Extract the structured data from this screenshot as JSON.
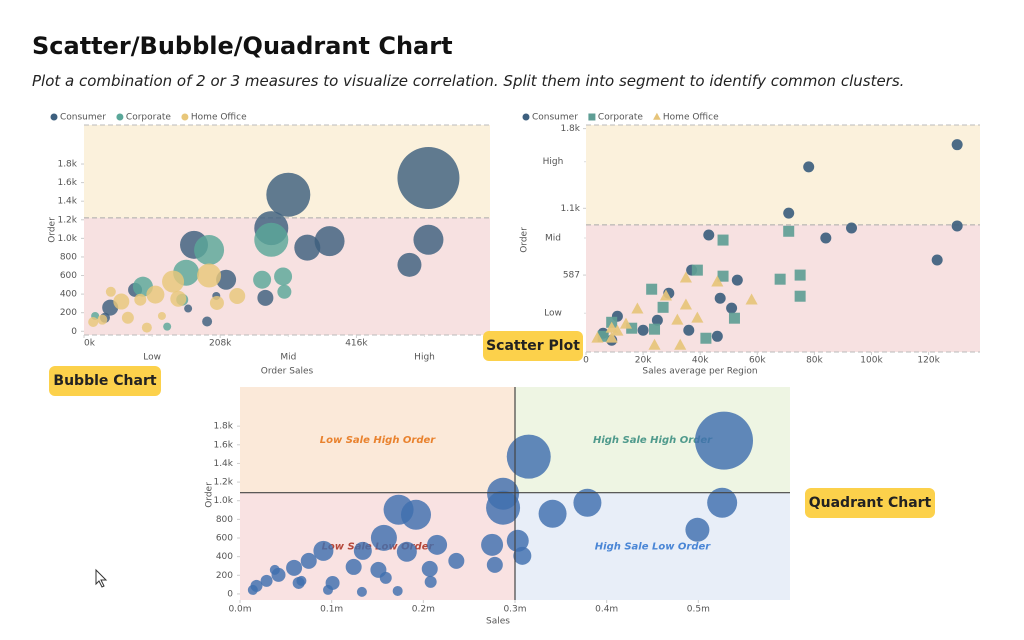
{
  "title": "Scatter/Bubble/Quadrant Chart",
  "subtitle": "Plot a combination of 2 or 3 measures to visualize correlation. Split them into segment to identify common clusters.",
  "chart_data": [
    {
      "type": "bubble",
      "badge": "Bubble Chart",
      "x_label": "Order Sales",
      "y_label": "Order",
      "xlim": [
        0,
        620000
      ],
      "ylim": [
        -40,
        2220
      ],
      "xticks": [
        {
          "value": 0,
          "label": "0k"
        },
        {
          "value": 208000,
          "label": "208k"
        },
        {
          "value": 416000,
          "label": "416k"
        }
      ],
      "xcategory_ticks": [
        {
          "value": 104000,
          "label": "Low"
        },
        {
          "value": 312000,
          "label": "Mid"
        },
        {
          "value": 520000,
          "label": "High"
        }
      ],
      "yticks": [
        0,
        200,
        400,
        600,
        800,
        {
          "value": 1000,
          "label": "1.0k"
        },
        {
          "value": 1200,
          "label": "1.2k"
        },
        {
          "value": 1400,
          "label": "1.4k"
        },
        {
          "value": 1600,
          "label": "1.6k"
        },
        {
          "value": 1800,
          "label": "1.8k"
        }
      ],
      "bands": {
        "threshold": 1220,
        "upper_color": "#fbf1dc",
        "lower_color": "#f7e1e1"
      },
      "series": [
        {
          "name": "Consumer",
          "color": "#3d5f7e",
          "marker": "circle",
          "x": [
            312000,
            526000,
            286000,
            375000,
            341000,
            526000,
            497000,
            168000,
            217000,
            277000,
            78000,
            40000,
            32000,
            188000,
            159000,
            202000
          ],
          "values": [
            1470,
            1650,
            1110,
            970,
            900,
            985,
            715,
            930,
            555,
            360,
            445,
            255,
            145,
            105,
            245,
            380
          ],
          "sizes": [
            22,
            31,
            17,
            15,
            13,
            15,
            12,
            14,
            10,
            8,
            7,
            8,
            5,
            5,
            4,
            4
          ]
        },
        {
          "name": "Corporate",
          "color": "#5aa799",
          "marker": "circle",
          "x": [
            286000,
            191000,
            156000,
            90000,
            272000,
            304000,
            306000,
            150000,
            127000,
            17000
          ],
          "values": [
            985,
            875,
            630,
            480,
            555,
            590,
            425,
            340,
            50,
            165
          ],
          "sizes": [
            17,
            15,
            13,
            10,
            9,
            9,
            7,
            6,
            4,
            4
          ]
        },
        {
          "name": "Home Office",
          "color": "#e8c77a",
          "marker": "circle",
          "x": [
            191000,
            136000,
            109000,
            144000,
            57000,
            234000,
            203000,
            86000,
            67000,
            96000,
            14000,
            28000,
            119000,
            41000
          ],
          "values": [
            600,
            535,
            395,
            350,
            320,
            380,
            305,
            340,
            145,
            40,
            100,
            125,
            165,
            425
          ],
          "sizes": [
            12,
            11,
            9,
            8,
            8,
            8,
            7,
            6,
            6,
            5,
            5,
            5,
            4,
            5
          ]
        }
      ]
    },
    {
      "type": "scatter",
      "badge": "Scatter Plot",
      "x_label": "Sales average per Region",
      "y_label": "Order",
      "xlim": [
        0,
        138000
      ],
      "ylim": [
        -50,
        1830
      ],
      "xticks": [
        0,
        {
          "value": 20000,
          "label": "20k"
        },
        {
          "value": 40000,
          "label": "40k"
        },
        {
          "value": 60000,
          "label": "60k"
        },
        {
          "value": 80000,
          "label": "80k"
        },
        {
          "value": 100000,
          "label": "100k"
        },
        {
          "value": 120000,
          "label": "120k"
        }
      ],
      "yticks": [
        587,
        {
          "value": 1140,
          "label": "1.1k"
        },
        {
          "value": 1800,
          "label": "1.8k"
        }
      ],
      "ycategory_ticks": [
        {
          "value": 271,
          "label": "Low"
        },
        {
          "value": 894,
          "label": "Mid"
        },
        {
          "value": 1526,
          "label": "High"
        }
      ],
      "bands": {
        "threshold": 1003,
        "upper_color": "#fbf1dc",
        "lower_color": "#f7e1e1"
      },
      "series": [
        {
          "name": "Consumer",
          "color": "#3d5f7e",
          "marker": "circle",
          "x": [
            130000,
            78000,
            71000,
            84000,
            93000,
            130000,
            123000,
            43000,
            37000,
            53000,
            29000,
            47000,
            11000,
            20000,
            6000,
            9000,
            25000,
            46000,
            51000,
            36000
          ],
          "values": [
            1667,
            1483,
            1100,
            894,
            977,
            994,
            712,
            919,
            628,
            545,
            437,
            395,
            246,
            130,
            105,
            47,
            213,
            80,
            313,
            130
          ]
        },
        {
          "name": "Corporate",
          "color": "#5f9e95",
          "marker": "square",
          "x": [
            71000,
            48000,
            39000,
            68000,
            75000,
            75000,
            48000,
            23000,
            9000,
            16000,
            6000,
            24000,
            42000,
            52000,
            27000
          ],
          "values": [
            950,
            877,
            628,
            553,
            587,
            412,
            578,
            470,
            196,
            147,
            80,
            139,
            64,
            230,
            320
          ]
        },
        {
          "name": "Home Office",
          "color": "#e6c47a",
          "marker": "triangle",
          "x": [
            58000,
            46000,
            35000,
            35000,
            32000,
            39000,
            18000,
            28000,
            14000,
            11000,
            4000,
            9000,
            24000,
            33000,
            9000
          ],
          "values": [
            380,
            529,
            562,
            338,
            213,
            230,
            305,
            413,
            180,
            122,
            64,
            64,
            5,
            5,
            147
          ]
        }
      ]
    },
    {
      "type": "bubble",
      "badge": "Quadrant Chart",
      "x_label": "Sales",
      "y_label": "Order",
      "xlim": [
        0,
        600000
      ],
      "ylim": [
        -65,
        2220
      ],
      "xticks": [
        {
          "value": 0,
          "label": "0.0m"
        },
        {
          "value": 100000,
          "label": "0.1m"
        },
        {
          "value": 200000,
          "label": "0.2m"
        },
        {
          "value": 300000,
          "label": "0.3m"
        },
        {
          "value": 400000,
          "label": "0.4m"
        },
        {
          "value": 500000,
          "label": "0.5m"
        }
      ],
      "yticks": [
        0,
        200,
        400,
        600,
        800,
        {
          "value": 1000,
          "label": "1.0k"
        },
        {
          "value": 1200,
          "label": "1.2k"
        },
        {
          "value": 1400,
          "label": "1.4k"
        },
        {
          "value": 1600,
          "label": "1.6k"
        },
        {
          "value": 1800,
          "label": "1.8k"
        }
      ],
      "quadrants": {
        "x": 300000,
        "y": 1086,
        "top_left": {
          "label": "Low Sale High Order",
          "color": "#e9822e",
          "fill": "#fbe9d9"
        },
        "top_right": {
          "label": "High Sale High Order",
          "color": "#4f9a8c",
          "fill": "#eef5e3"
        },
        "bottom_left": {
          "label": "Low Sale Low Order",
          "color": "#b5473a",
          "fill": "#f9e2e2"
        },
        "bottom_right": {
          "label": "High Sale Low Order",
          "color": "#4a86d6",
          "fill": "#e8eef8"
        }
      },
      "series": [
        {
          "name": null,
          "color": "#3f6fae",
          "marker": "circle",
          "x": [
            528000,
            315000,
            287000,
            287000,
            526000,
            379000,
            341000,
            499000,
            173000,
            192000,
            157000,
            303000,
            275000,
            215000,
            91000,
            182000,
            308000,
            134000,
            75000,
            124000,
            151000,
            207000,
            236000,
            59000,
            42000,
            278000,
            101000,
            64000,
            159000,
            208000,
            29000,
            18000,
            14000,
            67000,
            96000,
            133000,
            172000,
            38000
          ],
          "values": [
            1645,
            1473,
            1075,
            925,
            978,
            978,
            860,
            688,
            903,
            849,
            602,
            570,
            527,
            527,
            462,
            452,
            409,
            462,
            355,
            290,
            258,
            269,
            355,
            280,
            204,
            312,
            118,
            118,
            172,
            129,
            140,
            86,
            43,
            140,
            43,
            22,
            32,
            258
          ],
          "sizes": [
            29,
            22,
            16,
            17,
            15,
            14,
            14,
            12,
            15,
            15,
            13,
            11,
            11,
            10,
            10,
            10,
            9,
            9,
            8,
            8,
            8,
            8,
            8,
            8,
            7,
            8,
            7,
            6,
            6,
            6,
            6,
            6,
            5,
            5,
            5,
            5,
            5,
            5
          ]
        }
      ]
    }
  ]
}
